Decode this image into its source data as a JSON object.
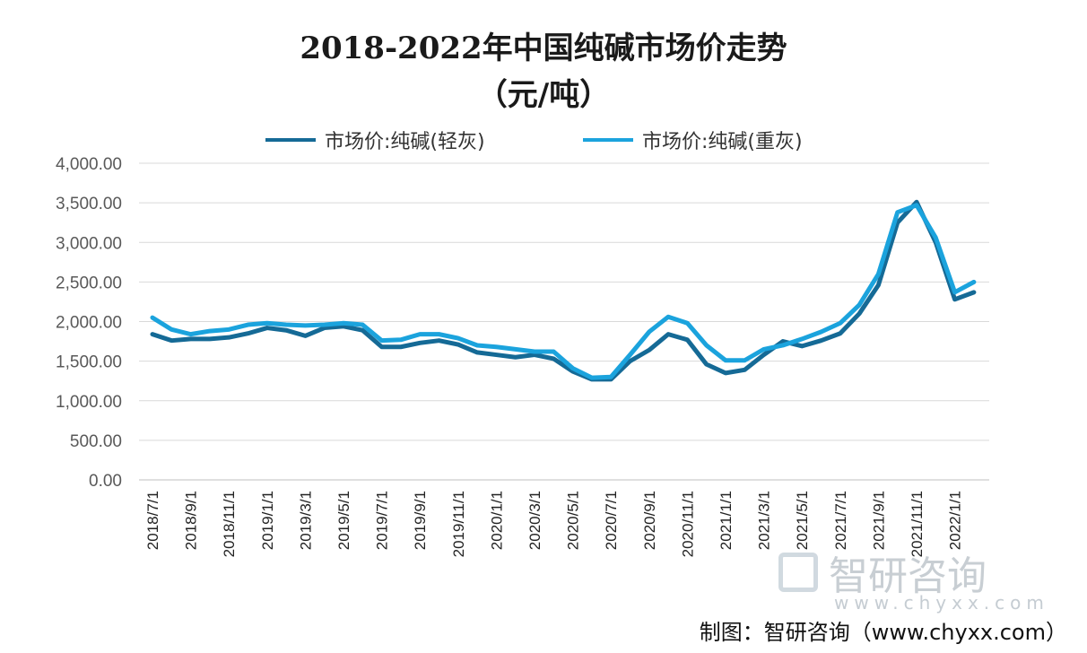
{
  "chart_data": {
    "type": "line",
    "title": "2018-2022年中国纯碱市场价走势",
    "subtitle": "（元/吨）",
    "xlabel": "",
    "ylabel": "",
    "ylim": [
      0,
      4000
    ],
    "yticks": [
      "0.00",
      "500.00",
      "1,000.00",
      "1,500.00",
      "2,000.00",
      "2,500.00",
      "3,000.00",
      "3,500.00",
      "4,000.00"
    ],
    "grid": true,
    "legend_position": "top",
    "x": [
      "2018/7/1",
      "2018/8/1",
      "2018/9/1",
      "2018/10/1",
      "2018/11/1",
      "2018/12/1",
      "2019/1/1",
      "2019/2/1",
      "2019/3/1",
      "2019/4/1",
      "2019/5/1",
      "2019/6/1",
      "2019/7/1",
      "2019/8/1",
      "2019/9/1",
      "2019/10/1",
      "2019/11/1",
      "2019/12/1",
      "2020/1/1",
      "2020/2/1",
      "2020/3/1",
      "2020/4/1",
      "2020/5/1",
      "2020/6/1",
      "2020/7/1",
      "2020/8/1",
      "2020/9/1",
      "2020/10/1",
      "2020/11/1",
      "2020/12/1",
      "2021/1/1",
      "2021/2/1",
      "2021/3/1",
      "2021/4/1",
      "2021/5/1",
      "2021/6/1",
      "2021/7/1",
      "2021/8/1",
      "2021/9/1",
      "2021/10/1",
      "2021/11/1",
      "2021/12/1",
      "2022/1/1",
      "2022/2/1"
    ],
    "xtick_labels": [
      "2018/7/1",
      "2018/9/1",
      "2018/11/1",
      "2019/1/1",
      "2019/3/1",
      "2019/5/1",
      "2019/7/1",
      "2019/9/1",
      "2019/11/1",
      "2020/1/1",
      "2020/3/1",
      "2020/5/1",
      "2020/7/1",
      "2020/9/1",
      "2020/11/1",
      "2021/1/1",
      "2021/3/1",
      "2021/5/1",
      "2021/7/1",
      "2021/9/1",
      "2021/11/1",
      "2022/1/1"
    ],
    "series": [
      {
        "name": "市场价:纯碱(轻灰)",
        "color": "#156a96",
        "values": [
          1840,
          1760,
          1780,
          1780,
          1800,
          1850,
          1920,
          1890,
          1820,
          1920,
          1940,
          1890,
          1680,
          1680,
          1730,
          1760,
          1710,
          1610,
          1580,
          1550,
          1580,
          1530,
          1370,
          1270,
          1270,
          1500,
          1640,
          1840,
          1770,
          1460,
          1350,
          1390,
          1580,
          1750,
          1690,
          1760,
          1850,
          2100,
          2460,
          3250,
          3510,
          3000,
          2280,
          2370
        ]
      },
      {
        "name": "市场价:纯碱(重灰)",
        "color": "#1ba3dd",
        "values": [
          2050,
          1900,
          1840,
          1880,
          1900,
          1960,
          1980,
          1960,
          1950,
          1960,
          1980,
          1960,
          1760,
          1770,
          1840,
          1840,
          1790,
          1700,
          1680,
          1650,
          1620,
          1620,
          1410,
          1290,
          1300,
          1580,
          1870,
          2060,
          1980,
          1700,
          1510,
          1510,
          1650,
          1700,
          1780,
          1870,
          1980,
          2210,
          2600,
          3380,
          3470,
          3060,
          2370,
          2500
        ]
      }
    ]
  },
  "footer": "制图：智研咨询（www.chyxx.com）",
  "watermark": {
    "text": "智研咨询",
    "url": "www.chyxx.com"
  }
}
